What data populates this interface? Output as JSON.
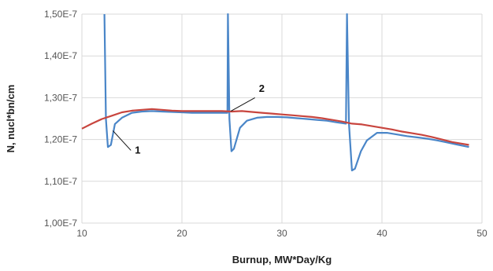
{
  "chart_data": {
    "type": "line",
    "xlabel": "Burnup, MW*Day/Kg",
    "ylabel": "N, nucl*bn/cm",
    "xlim": [
      10,
      50
    ],
    "ylim": [
      1e-07,
      1.5e-07
    ],
    "x_ticks": [
      "10",
      "20",
      "30",
      "40",
      "50"
    ],
    "y_ticks": [
      "1,00E-7",
      "1,10E-7",
      "1,20E-7",
      "1,30E-7",
      "1,40E-7",
      "1,50E-7"
    ],
    "grid": true,
    "legend": "none",
    "colors": {
      "series_1": "#4a86c8",
      "series_2": "#c8453e"
    },
    "annotations": [
      {
        "text": "1",
        "target": "series_1"
      },
      {
        "text": "2",
        "target": "series_2"
      }
    ],
    "series": [
      {
        "id": "series_1",
        "points": [
          [
            12.25,
            1.5e-07
          ],
          [
            12.4,
            1.249e-07
          ],
          [
            12.6,
            1.182e-07
          ],
          [
            12.9,
            1.187e-07
          ],
          [
            13.3,
            1.237e-07
          ],
          [
            14,
            1.252e-07
          ],
          [
            15,
            1.264e-07
          ],
          [
            16,
            1.267e-07
          ],
          [
            17,
            1.268e-07
          ],
          [
            18,
            1.267e-07
          ],
          [
            19,
            1.266e-07
          ],
          [
            20,
            1.265e-07
          ],
          [
            21,
            1.264e-07
          ],
          [
            22,
            1.264e-07
          ],
          [
            23,
            1.264e-07
          ],
          [
            24,
            1.264e-07
          ],
          [
            24.55,
            1.264e-07
          ],
          [
            24.6,
            1.5e-07
          ],
          [
            24.75,
            1.249e-07
          ],
          [
            24.95,
            1.172e-07
          ],
          [
            25.2,
            1.178e-07
          ],
          [
            25.8,
            1.228e-07
          ],
          [
            26.5,
            1.245e-07
          ],
          [
            27.5,
            1.252e-07
          ],
          [
            28.5,
            1.254e-07
          ],
          [
            29.5,
            1.254e-07
          ],
          [
            30.5,
            1.253e-07
          ],
          [
            31.5,
            1.251e-07
          ],
          [
            32.5,
            1.249e-07
          ],
          [
            33.5,
            1.247e-07
          ],
          [
            34.5,
            1.245e-07
          ],
          [
            35.5,
            1.241e-07
          ],
          [
            36.4,
            1.238e-07
          ],
          [
            36.5,
            1.5e-07
          ],
          [
            36.7,
            1.238e-07
          ],
          [
            37,
            1.126e-07
          ],
          [
            37.3,
            1.13e-07
          ],
          [
            37.9,
            1.172e-07
          ],
          [
            38.5,
            1.198e-07
          ],
          [
            39.5,
            1.216e-07
          ],
          [
            40.5,
            1.216e-07
          ],
          [
            41.5,
            1.212e-07
          ],
          [
            42.5,
            1.208e-07
          ],
          [
            43.5,
            1.205e-07
          ],
          [
            44.5,
            1.202e-07
          ],
          [
            45.5,
            1.198e-07
          ],
          [
            46.5,
            1.193e-07
          ],
          [
            47.5,
            1.188e-07
          ],
          [
            48.7,
            1.182e-07
          ]
        ]
      },
      {
        "id": "series_2",
        "points": [
          [
            10,
            1.226e-07
          ],
          [
            11,
            1.238e-07
          ],
          [
            12,
            1.249e-07
          ],
          [
            13,
            1.257e-07
          ],
          [
            14,
            1.265e-07
          ],
          [
            15,
            1.269e-07
          ],
          [
            16,
            1.271e-07
          ],
          [
            17,
            1.273e-07
          ],
          [
            18,
            1.271e-07
          ],
          [
            19,
            1.269e-07
          ],
          [
            20,
            1.268e-07
          ],
          [
            21,
            1.268e-07
          ],
          [
            22,
            1.268e-07
          ],
          [
            23,
            1.268e-07
          ],
          [
            24,
            1.268e-07
          ],
          [
            25,
            1.267e-07
          ],
          [
            26,
            1.268e-07
          ],
          [
            27,
            1.266e-07
          ],
          [
            28,
            1.264e-07
          ],
          [
            29,
            1.262e-07
          ],
          [
            30,
            1.26e-07
          ],
          [
            31,
            1.258e-07
          ],
          [
            32,
            1.256e-07
          ],
          [
            33,
            1.254e-07
          ],
          [
            34,
            1.251e-07
          ],
          [
            35,
            1.247e-07
          ],
          [
            36,
            1.243e-07
          ],
          [
            37,
            1.238e-07
          ],
          [
            38,
            1.236e-07
          ],
          [
            39,
            1.232e-07
          ],
          [
            40,
            1.228e-07
          ],
          [
            41,
            1.224e-07
          ],
          [
            42,
            1.219e-07
          ],
          [
            43,
            1.215e-07
          ],
          [
            44,
            1.211e-07
          ],
          [
            45,
            1.206e-07
          ],
          [
            46,
            1.2e-07
          ],
          [
            47,
            1.194e-07
          ],
          [
            48,
            1.19e-07
          ],
          [
            48.7,
            1.187e-07
          ]
        ]
      }
    ]
  }
}
